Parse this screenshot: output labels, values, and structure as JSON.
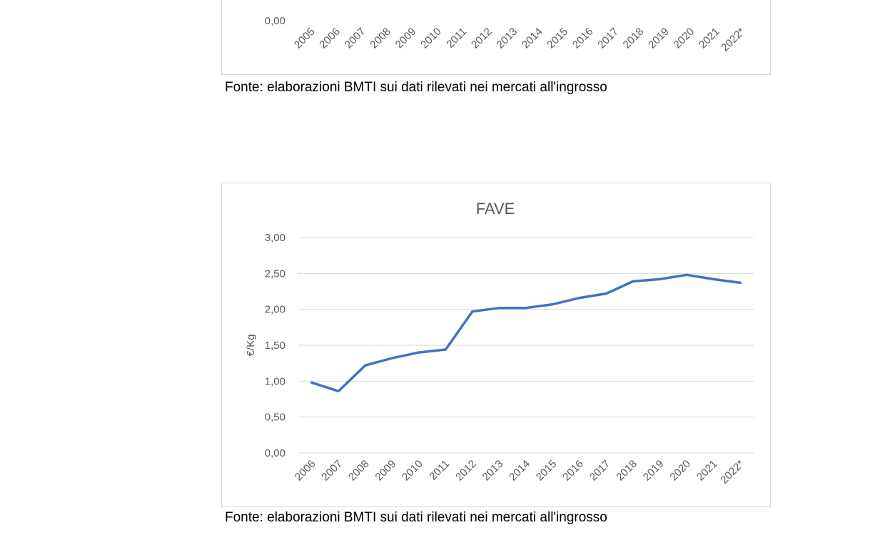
{
  "colors": {
    "line": "#4472c4",
    "grid": "#d9d9d9",
    "axis_text": "#595959",
    "frame": "#d9d9d9"
  },
  "captions": {
    "top": "Fonte: elaborazioni BMTI sui dati rilevati nei mercati all'ingrosso",
    "fave": "Fonte: elaborazioni BMTI sui dati rilevati nei mercati all'ingrosso"
  },
  "chart_data": [
    {
      "type": "line",
      "partial": true,
      "title": "",
      "ylabel": "",
      "categories": [
        "2005",
        "2006",
        "2007",
        "2008",
        "2009",
        "2010",
        "2011",
        "2012",
        "2013",
        "2014",
        "2015",
        "2016",
        "2017",
        "2018",
        "2019",
        "2020",
        "2021",
        "2022*"
      ],
      "y_ticks": [
        "0,00"
      ]
    },
    {
      "type": "line",
      "title": "FAVE",
      "ylabel": "€/Kg",
      "categories": [
        "2006",
        "2007",
        "2008",
        "2009",
        "2010",
        "2011",
        "2012",
        "2013",
        "2014",
        "2015",
        "2016",
        "2017",
        "2018",
        "2019",
        "2020",
        "2021",
        "2022*"
      ],
      "series": [
        {
          "values": [
            0.98,
            0.86,
            1.22,
            1.32,
            1.4,
            1.44,
            1.97,
            2.02,
            2.02,
            2.07,
            2.16,
            2.22,
            2.39,
            2.42,
            2.48,
            2.42,
            2.37
          ]
        }
      ],
      "ylim": [
        0,
        3
      ],
      "y_ticks": [
        "0,00",
        "0,50",
        "1,00",
        "1,50",
        "2,00",
        "2,50",
        "3,00"
      ],
      "y_tick_values": [
        0,
        0.5,
        1,
        1.5,
        2,
        2.5,
        3
      ],
      "grid": true,
      "legend": "none"
    }
  ]
}
